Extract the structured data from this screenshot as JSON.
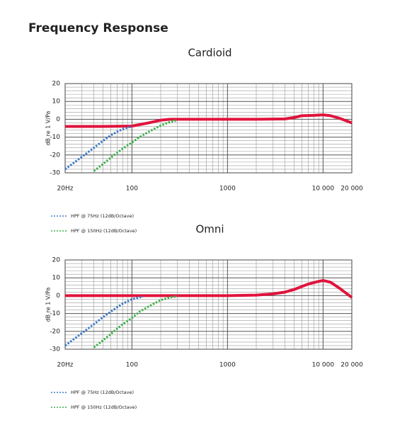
{
  "title": "Frequency Response",
  "chart_data": [
    {
      "type": "line",
      "title": "Cardioid",
      "y_label": "dB re 1 V/Pa",
      "x_scale": "log",
      "grid": true,
      "xlim": [
        20,
        20000
      ],
      "ylim": [
        -30,
        20
      ],
      "xticks": [
        {
          "value": 20,
          "label": "20Hz"
        },
        100,
        1000,
        {
          "value": 10000,
          "label": "10 000"
        },
        {
          "value": 20000,
          "label": "20 000"
        }
      ],
      "yticks": [
        20,
        10,
        0,
        -10,
        -20,
        -30
      ],
      "x_minor_ticks": [
        30,
        40,
        50,
        60,
        70,
        80,
        90,
        200,
        300,
        400,
        500,
        600,
        700,
        800,
        900,
        2000,
        3000,
        4000,
        5000,
        6000,
        7000,
        8000,
        9000
      ],
      "y_minor_ticks": [
        18,
        16,
        14,
        12,
        8,
        6,
        4,
        2,
        -2,
        -4,
        -6,
        -8,
        -12,
        -14,
        -16,
        -18,
        -22,
        -24,
        -26,
        -28
      ],
      "series": [
        {
          "color": "#e0143c",
          "style": "solid",
          "x": [
            20,
            50,
            100,
            150,
            200,
            250,
            500,
            1000,
            2000,
            4000,
            5000,
            6000,
            8000,
            10000,
            12000,
            15000,
            20000
          ],
          "values": [
            -4,
            -4,
            -3.8,
            -2,
            -0.5,
            0,
            0,
            0,
            0,
            0.2,
            1,
            2,
            2.2,
            2.5,
            2,
            0.5,
            -2
          ]
        },
        {
          "name": "HPF @ 75Hz (12dB/Octave)",
          "color": "#3b78c6",
          "style": "dotted",
          "x": [
            20,
            30,
            40,
            50,
            60,
            70,
            80,
            100
          ],
          "values": [
            -28,
            -21,
            -16,
            -12,
            -9,
            -7,
            -5.5,
            -4
          ]
        },
        {
          "name": "HPF @ 150Hz (12dB/Octave)",
          "color": "#3cb04a",
          "style": "dotted",
          "x": [
            40,
            50,
            60,
            80,
            100,
            120,
            150,
            200,
            250,
            300
          ],
          "values": [
            -29,
            -25,
            -21.5,
            -16.5,
            -13,
            -10,
            -7,
            -3.5,
            -1.5,
            -0.5
          ]
        }
      ]
    },
    {
      "type": "line",
      "title": "Omni",
      "y_label": "dB re 1 V/Pa",
      "x_scale": "log",
      "grid": true,
      "xlim": [
        20,
        20000
      ],
      "ylim": [
        -30,
        20
      ],
      "xticks": [
        {
          "value": 20,
          "label": "20Hz"
        },
        100,
        1000,
        {
          "value": 10000,
          "label": "10 000"
        },
        {
          "value": 20000,
          "label": "20 000"
        }
      ],
      "yticks": [
        20,
        10,
        0,
        -10,
        -20,
        -30
      ],
      "x_minor_ticks": [
        30,
        40,
        50,
        60,
        70,
        80,
        90,
        200,
        300,
        400,
        500,
        600,
        700,
        800,
        900,
        2000,
        3000,
        4000,
        5000,
        6000,
        7000,
        8000,
        9000
      ],
      "y_minor_ticks": [
        18,
        16,
        14,
        12,
        8,
        6,
        4,
        2,
        -2,
        -4,
        -6,
        -8,
        -12,
        -14,
        -16,
        -18,
        -22,
        -24,
        -26,
        -28
      ],
      "series": [
        {
          "color": "#e0143c",
          "style": "solid",
          "x": [
            20,
            1000,
            2000,
            3000,
            4000,
            5000,
            7000,
            9000,
            10000,
            12000,
            15000,
            20000
          ],
          "values": [
            0,
            0,
            0.3,
            1,
            2,
            3.5,
            6.5,
            8,
            8.5,
            7.5,
            4,
            -1
          ]
        },
        {
          "name": "HPF @ 75Hz (12dB/Octave)",
          "color": "#3b78c6",
          "style": "dotted",
          "x": [
            20,
            30,
            40,
            50,
            60,
            70,
            80,
            100,
            130
          ],
          "values": [
            -28,
            -21,
            -16,
            -12,
            -9,
            -6.5,
            -4.5,
            -2,
            -0.5
          ]
        },
        {
          "name": "HPF @ 150Hz (12dB/Octave)",
          "color": "#3cb04a",
          "style": "dotted",
          "x": [
            40,
            50,
            60,
            80,
            100,
            120,
            150,
            200,
            250,
            300
          ],
          "values": [
            -29,
            -25,
            -21.5,
            -16,
            -12.5,
            -9,
            -6,
            -2.5,
            -1,
            -0.3
          ]
        }
      ]
    }
  ]
}
